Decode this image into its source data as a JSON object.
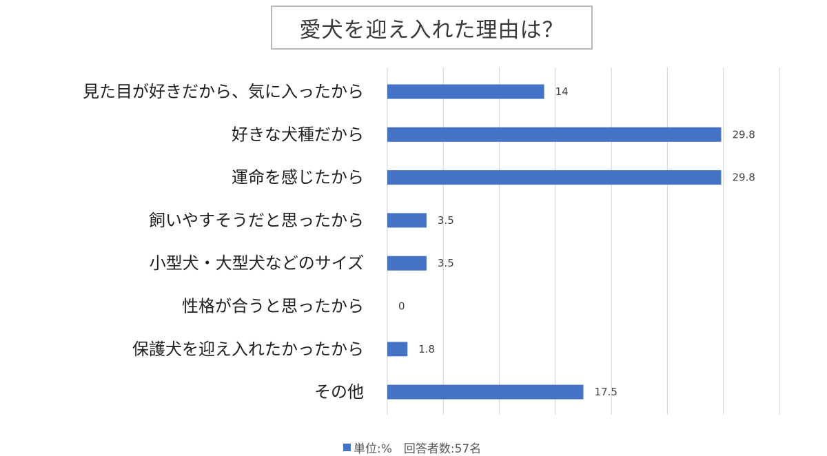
{
  "chart_data": {
    "type": "bar",
    "orientation": "horizontal",
    "title": "愛犬を迎え入れた理由は？",
    "categories": [
      "見た目が好きだから、気に入ったから",
      "好きな犬種だから",
      "運命を感じたから",
      "飼いやすそうだと思ったから",
      "小型犬・大型犬などのサイズ",
      "性格が合うと思ったから",
      "保護犬を迎え入れたかったから",
      "その他"
    ],
    "values": [
      14,
      29.8,
      29.8,
      3.5,
      3.5,
      0,
      1.8,
      17.5
    ],
    "value_labels": [
      "14",
      "29.8",
      "29.8",
      "3.5",
      "3.5",
      "0",
      "1.8",
      "17.5"
    ],
    "xlim": [
      0,
      35
    ],
    "x_gridlines": [
      0,
      5,
      10,
      15,
      20,
      25,
      30,
      35
    ],
    "x_tick_labels_shown": false,
    "grid": true,
    "legend": {
      "text": "単位:%　回答者数:57名",
      "position": "bottom-center"
    },
    "colors": {
      "bar": "#4472c4",
      "grid": "#d9d9d9",
      "category_text": "#1f1f1f",
      "value_text": "#404040",
      "title_border": "#b8b8b8"
    }
  }
}
